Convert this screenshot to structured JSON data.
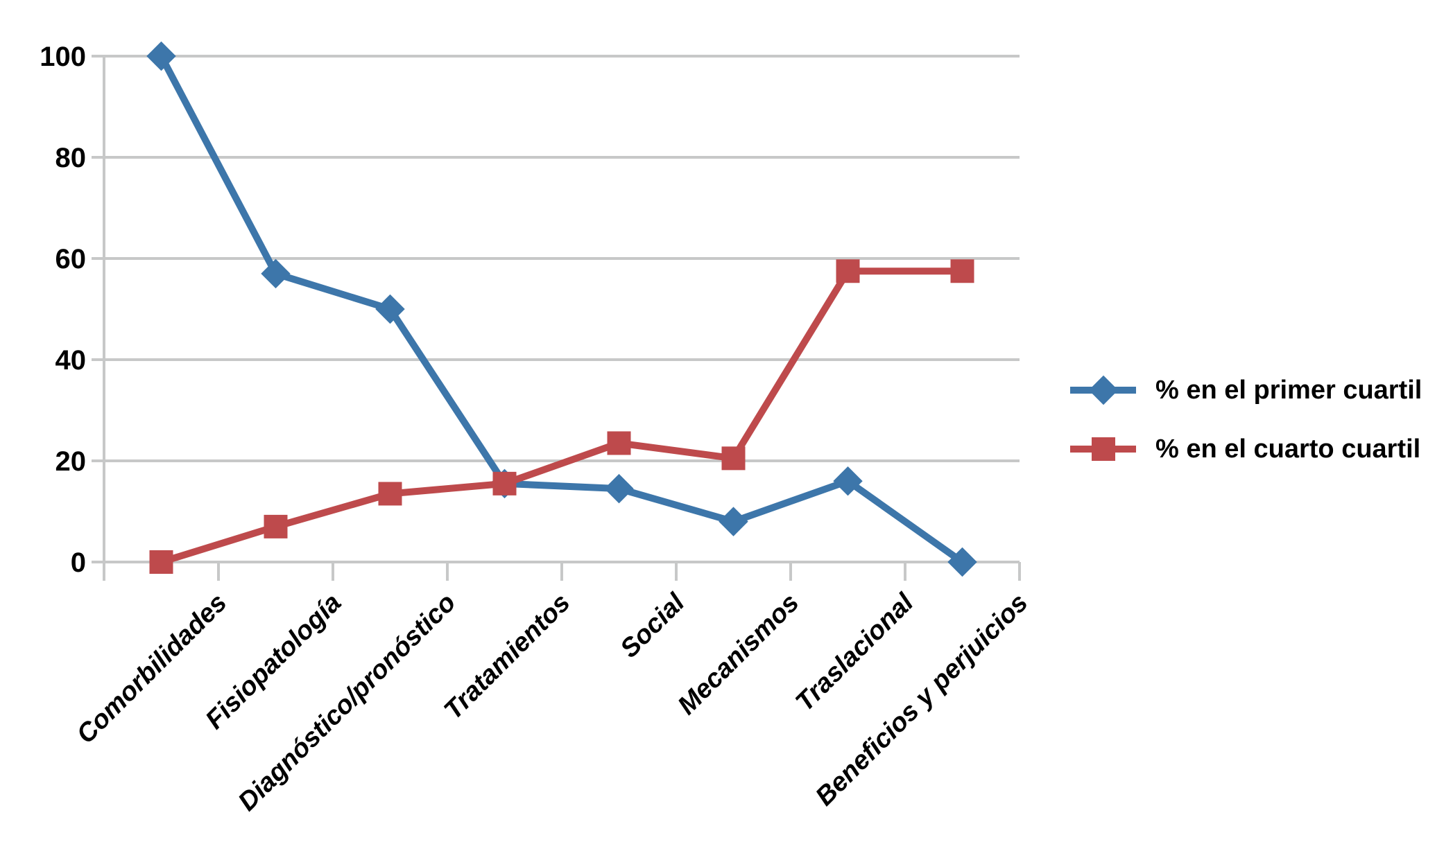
{
  "chart_data": {
    "type": "line",
    "title": "",
    "xlabel": "",
    "ylabel": "",
    "categories": [
      "Comorbilidades",
      "Fisiopatología",
      "Diagnóstico/pronóstico",
      "Tratamientos",
      "Social",
      "Mecanismos",
      "Traslacional",
      "Beneficios y perjuicios"
    ],
    "series": [
      {
        "name": "% en el primer cuartil",
        "marker": "diamond",
        "color": "#3D76AA",
        "values": [
          100,
          57,
          50,
          15.5,
          14.5,
          8,
          16,
          0
        ]
      },
      {
        "name": "% en el cuarto cuartil",
        "marker": "square",
        "color": "#BE4A4C",
        "values": [
          0,
          7,
          13.5,
          15.5,
          23.5,
          20.5,
          57.5,
          57.5
        ]
      }
    ],
    "ylim": [
      0,
      100
    ],
    "yticks": [
      0,
      20,
      40,
      60,
      80,
      100
    ],
    "grid": true,
    "legend_position": "right-center",
    "gridline_color": "#C7C8C8",
    "text_color": "#000000",
    "background": "#FFFFFF"
  }
}
